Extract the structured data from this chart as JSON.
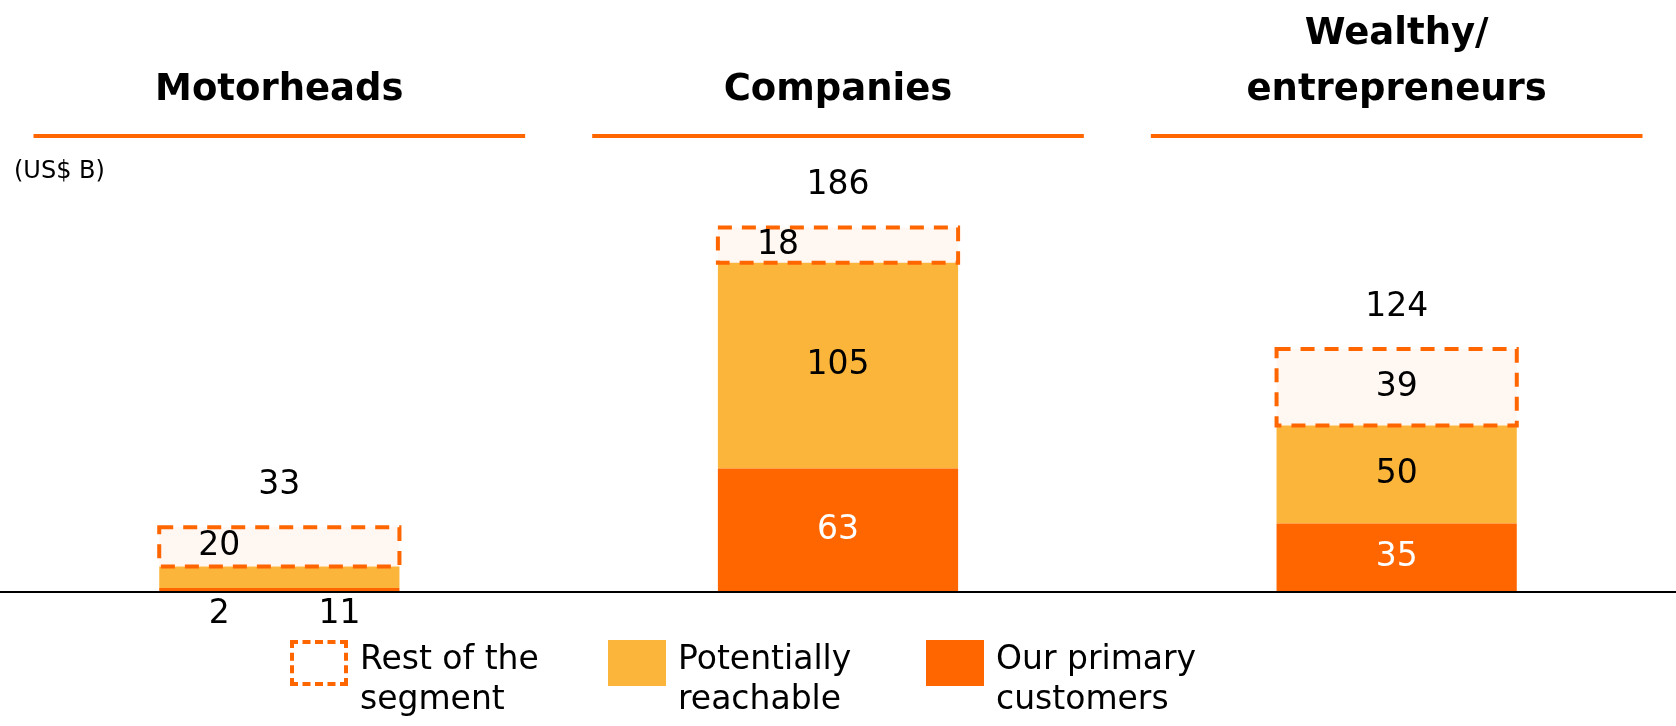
{
  "chart_data": {
    "type": "bar",
    "stacked": true,
    "ylabel": "(US$ B)",
    "categories": [
      "Motorheads",
      "Companies",
      "Wealthy/ entrepreneurs"
    ],
    "series": [
      {
        "name": "Our primary customers",
        "color": "#ff6600",
        "values": [
          2,
          63,
          35
        ]
      },
      {
        "name": "Potentially reachable",
        "color": "#fbb53a",
        "values": [
          11,
          105,
          50
        ]
      },
      {
        "name": "Rest of the segment",
        "color": "#ff6600",
        "line_style": "dashed",
        "values": [
          20,
          18,
          39
        ]
      }
    ],
    "totals": [
      "33",
      "186",
      "124"
    ],
    "data_labels": true,
    "tick_labels": "x",
    "legend": "bottom"
  }
}
